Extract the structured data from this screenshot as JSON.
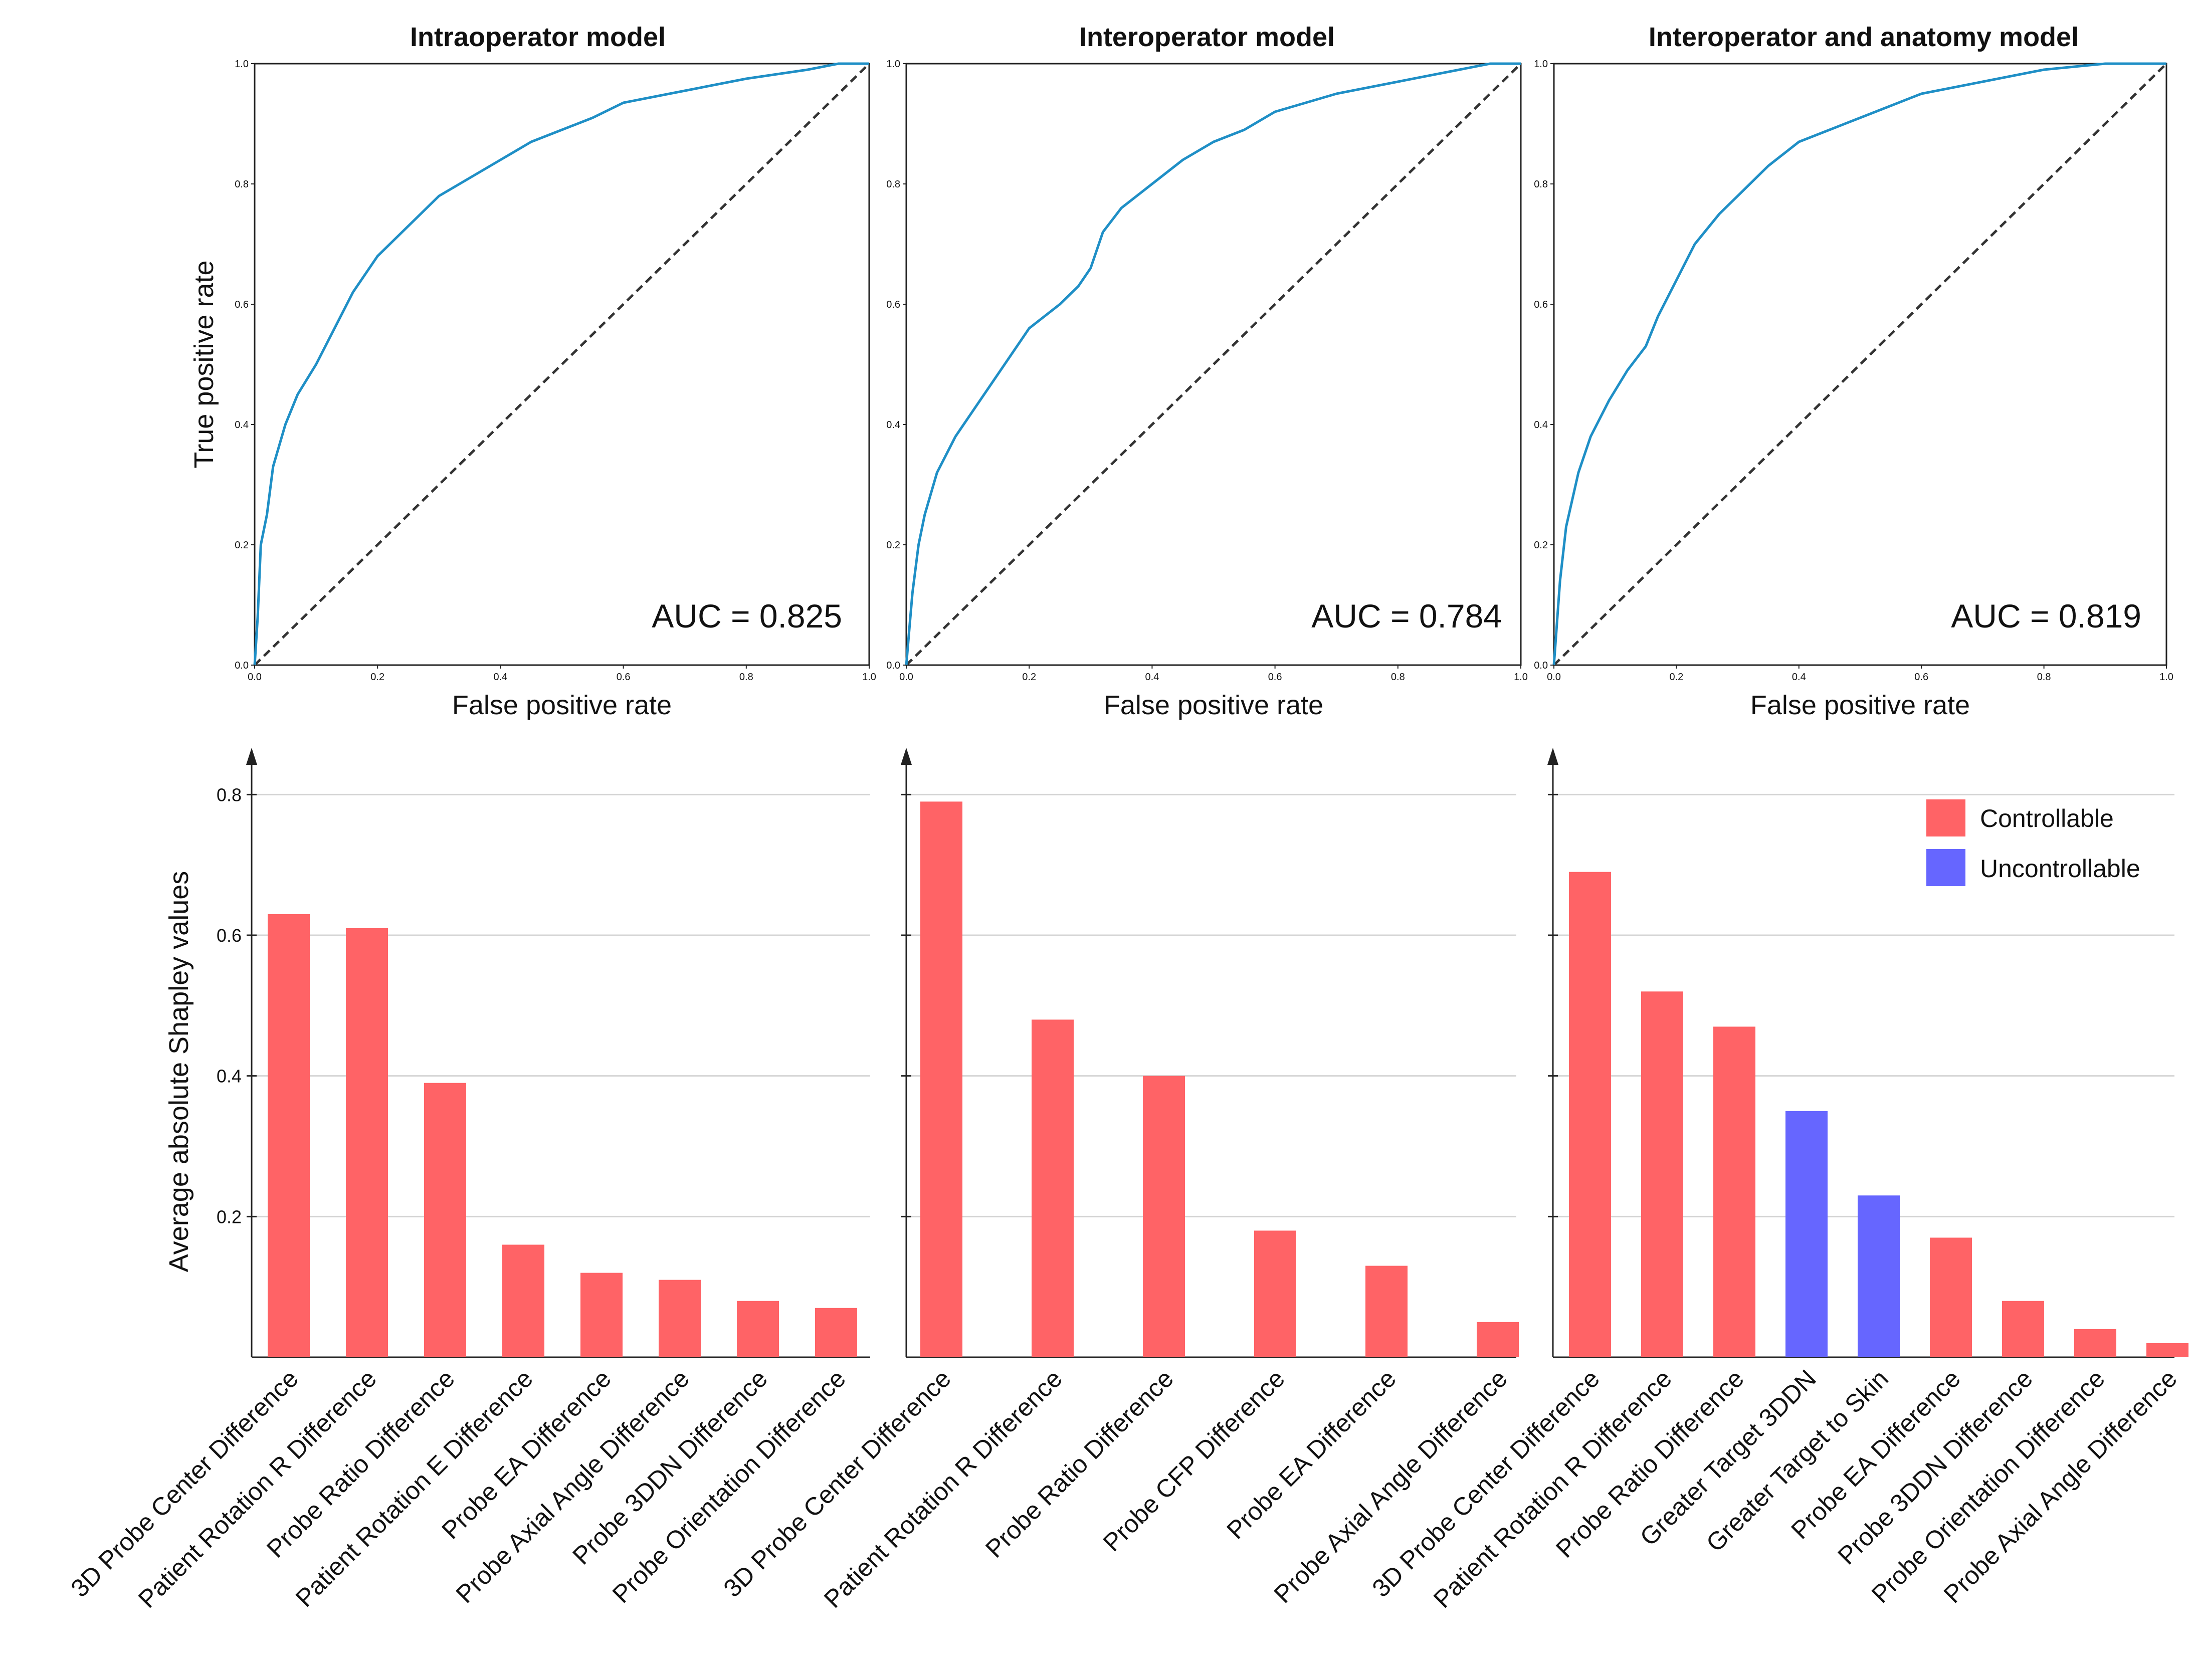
{
  "chart_data": {
    "roc": [
      {
        "type": "line",
        "title": "Intraoperator model",
        "xlabel": "False positive rate",
        "ylabel": "True positive rate",
        "xlim": [
          0,
          1
        ],
        "ylim": [
          0,
          1
        ],
        "ticks": [
          "0.0",
          "0.2",
          "0.4",
          "0.6",
          "0.8",
          "1.0"
        ],
        "auc_text": "AUC = 0.825",
        "curve_color": "#1f8fc6",
        "diagonal_color": "#333333",
        "points": [
          [
            0,
            0
          ],
          [
            0.005,
            0.08
          ],
          [
            0.01,
            0.2
          ],
          [
            0.02,
            0.25
          ],
          [
            0.03,
            0.33
          ],
          [
            0.05,
            0.4
          ],
          [
            0.07,
            0.45
          ],
          [
            0.1,
            0.5
          ],
          [
            0.13,
            0.56
          ],
          [
            0.16,
            0.62
          ],
          [
            0.2,
            0.68
          ],
          [
            0.25,
            0.73
          ],
          [
            0.3,
            0.78
          ],
          [
            0.35,
            0.81
          ],
          [
            0.4,
            0.84
          ],
          [
            0.45,
            0.87
          ],
          [
            0.5,
            0.89
          ],
          [
            0.55,
            0.91
          ],
          [
            0.6,
            0.935
          ],
          [
            0.7,
            0.955
          ],
          [
            0.8,
            0.975
          ],
          [
            0.9,
            0.99
          ],
          [
            0.95,
            1.0
          ],
          [
            1.0,
            1.0
          ]
        ]
      },
      {
        "type": "line",
        "title": "Interoperator model",
        "xlabel": "False positive rate",
        "ylabel": "",
        "xlim": [
          0,
          1
        ],
        "ylim": [
          0,
          1
        ],
        "ticks": [
          "0.0",
          "0.2",
          "0.4",
          "0.6",
          "0.8",
          "1.0"
        ],
        "auc_text": "AUC = 0.784",
        "curve_color": "#1f8fc6",
        "diagonal_color": "#333333",
        "points": [
          [
            0,
            0
          ],
          [
            0.005,
            0.06
          ],
          [
            0.01,
            0.12
          ],
          [
            0.02,
            0.2
          ],
          [
            0.03,
            0.25
          ],
          [
            0.05,
            0.32
          ],
          [
            0.08,
            0.38
          ],
          [
            0.12,
            0.44
          ],
          [
            0.16,
            0.5
          ],
          [
            0.2,
            0.56
          ],
          [
            0.25,
            0.6
          ],
          [
            0.28,
            0.63
          ],
          [
            0.3,
            0.66
          ],
          [
            0.32,
            0.72
          ],
          [
            0.35,
            0.76
          ],
          [
            0.4,
            0.8
          ],
          [
            0.45,
            0.84
          ],
          [
            0.5,
            0.87
          ],
          [
            0.55,
            0.89
          ],
          [
            0.6,
            0.92
          ],
          [
            0.7,
            0.95
          ],
          [
            0.8,
            0.97
          ],
          [
            0.9,
            0.99
          ],
          [
            0.95,
            1.0
          ],
          [
            1.0,
            1.0
          ]
        ]
      },
      {
        "type": "line",
        "title": "Interoperator  and anatomy model",
        "xlabel": "False positive rate",
        "ylabel": "",
        "xlim": [
          0,
          1
        ],
        "ylim": [
          0,
          1
        ],
        "ticks": [
          "0.0",
          "0.2",
          "0.4",
          "0.6",
          "0.8",
          "1.0"
        ],
        "auc_text": "AUC = 0.819",
        "curve_color": "#1f8fc6",
        "diagonal_color": "#333333",
        "points": [
          [
            0,
            0
          ],
          [
            0.005,
            0.07
          ],
          [
            0.01,
            0.14
          ],
          [
            0.02,
            0.23
          ],
          [
            0.04,
            0.32
          ],
          [
            0.06,
            0.38
          ],
          [
            0.09,
            0.44
          ],
          [
            0.12,
            0.49
          ],
          [
            0.15,
            0.53
          ],
          [
            0.17,
            0.58
          ],
          [
            0.2,
            0.64
          ],
          [
            0.23,
            0.7
          ],
          [
            0.27,
            0.75
          ],
          [
            0.3,
            0.78
          ],
          [
            0.35,
            0.83
          ],
          [
            0.4,
            0.87
          ],
          [
            0.45,
            0.89
          ],
          [
            0.5,
            0.91
          ],
          [
            0.55,
            0.93
          ],
          [
            0.6,
            0.95
          ],
          [
            0.7,
            0.97
          ],
          [
            0.8,
            0.99
          ],
          [
            0.9,
            1.0
          ],
          [
            1.0,
            1.0
          ]
        ]
      }
    ],
    "bars": [
      {
        "type": "bar",
        "ylabel": "Average absolute Shapley values",
        "yticks": [
          "0.2",
          "0.4",
          "0.6",
          "0.8"
        ],
        "ylim": [
          0,
          0.9
        ],
        "categories": [
          "3D Probe Center Difference",
          "Patient Rotation R Difference",
          "Probe Ratio Difference",
          "Patient Rotation E Difference",
          "Probe EA Difference",
          "Probe Axial Angle Difference",
          "Probe 3DDN Difference",
          "Probe Orientation Difference"
        ],
        "values": [
          0.63,
          0.61,
          0.39,
          0.16,
          0.12,
          0.11,
          0.08,
          0.07
        ],
        "groups": [
          "Controllable",
          "Controllable",
          "Controllable",
          "Controllable",
          "Controllable",
          "Controllable",
          "Controllable",
          "Controllable"
        ]
      },
      {
        "type": "bar",
        "ylabel": "",
        "yticks": [],
        "ylim": [
          0,
          0.9
        ],
        "categories": [
          "3D Probe Center Difference",
          "Patient Rotation R Difference",
          "Probe Ratio Difference",
          "Probe CFP Difference",
          "Probe EA Difference",
          "Probe Axial Angle Difference"
        ],
        "values": [
          0.79,
          0.48,
          0.4,
          0.18,
          0.13,
          0.05
        ],
        "groups": [
          "Controllable",
          "Controllable",
          "Controllable",
          "Controllable",
          "Controllable",
          "Controllable"
        ]
      },
      {
        "type": "bar",
        "ylabel": "",
        "yticks": [],
        "ylim": [
          0,
          0.9
        ],
        "categories": [
          "3D Probe Center Difference",
          "Patient Rotation R Difference",
          "Probe Ratio Difference",
          "Greater Target 3DDN",
          "Greater Target to Skin",
          "Probe EA Difference",
          "Probe 3DDN Difference",
          "Probe Orientation Difference",
          "Probe Axial Angle Difference"
        ],
        "values": [
          0.69,
          0.52,
          0.47,
          0.35,
          0.23,
          0.17,
          0.08,
          0.04,
          0.02
        ],
        "groups": [
          "Controllable",
          "Controllable",
          "Controllable",
          "Uncontrollable",
          "Uncontrollable",
          "Controllable",
          "Controllable",
          "Controllable",
          "Controllable"
        ]
      }
    ],
    "legend": [
      {
        "label": "Controllable",
        "color": "#ff6366"
      },
      {
        "label": "Uncontrollable",
        "color": "#6666ff"
      }
    ]
  }
}
